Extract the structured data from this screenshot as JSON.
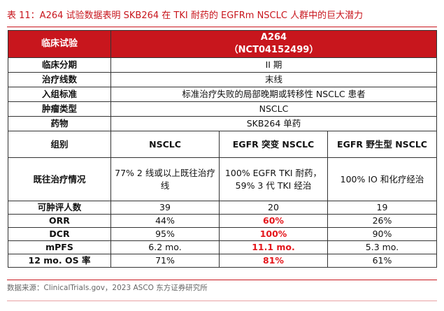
{
  "title": "表 11：A264 试验数据表明 SKB264 在 TKI 耐药的 EGFRm NSCLC 人群中的巨大潜力",
  "header": {
    "col1": "临床试验",
    "trial_name": "A264",
    "trial_id": "（NCT04152499）"
  },
  "rows_common": [
    {
      "label": "临床分期",
      "value": "II 期"
    },
    {
      "label": "治疗线数",
      "value": "末线"
    },
    {
      "label": "入组标准",
      "value": "标准治疗失败的局部晚期或转移性 NSCLC 患者"
    },
    {
      "label": "肿瘤类型",
      "value": "NSCLC"
    },
    {
      "label": "药物",
      "value": "SKB264 单药"
    }
  ],
  "group_row": {
    "label": "组别",
    "groups": [
      "NSCLC",
      "EGFR 突变 NSCLC",
      "EGFR 野生型 NSCLC"
    ]
  },
  "prior_row": {
    "label": "既往治疗情况",
    "values": [
      "77% 2 线或以上既往治疗线",
      "100% EGFR TKI 耐药，59% 3 代 TKI 经治",
      "100% IO 和化疗经治"
    ]
  },
  "rows_metrics": [
    {
      "label": "可肿评人数",
      "values": [
        "39",
        "20",
        "19"
      ]
    },
    {
      "label": "ORR",
      "values": [
        "44%",
        "60%",
        "26%"
      ]
    },
    {
      "label": "DCR",
      "values": [
        "95%",
        "100%",
        "90%"
      ]
    },
    {
      "label": "mPFS",
      "values": [
        "6.2 mo.",
        "11.1 mo.",
        "5.3 mo."
      ]
    },
    {
      "label": "12 mo. OS 率",
      "values": [
        "71%",
        "81%",
        "61%"
      ]
    }
  ],
  "highlight_color": "#e4161b",
  "source": "数据来源：ClinicalTrials.gov，2023 ASCO 东方证券研究所"
}
